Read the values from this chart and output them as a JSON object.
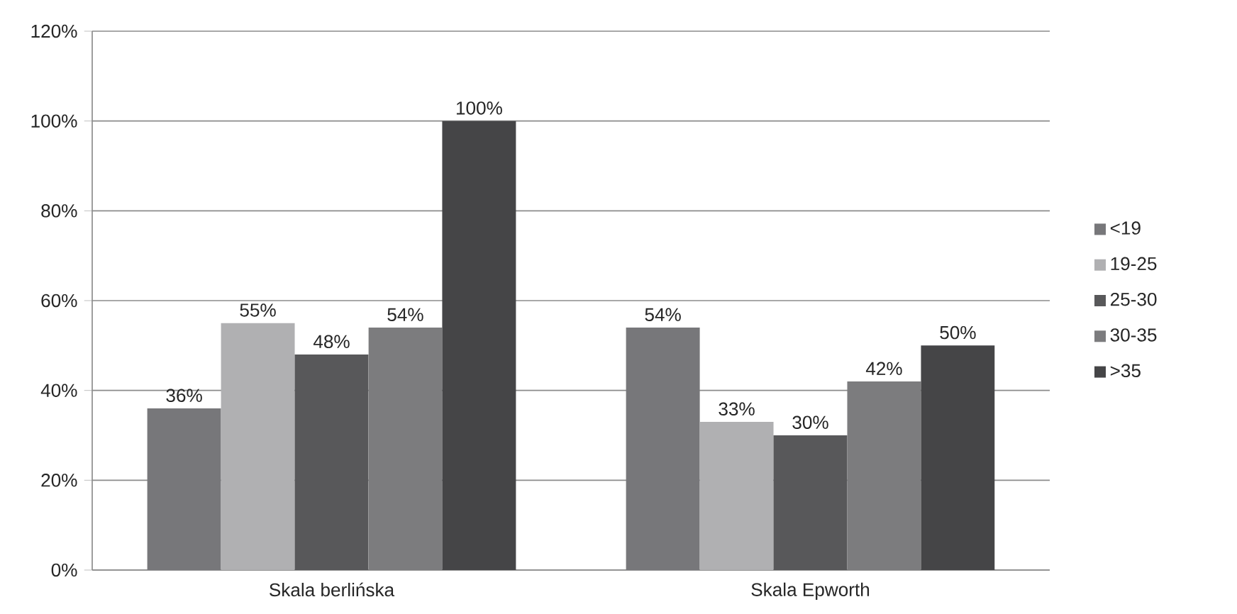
{
  "chart_data": {
    "type": "bar",
    "categories": [
      "Skala berlińska",
      "Skala Epworth"
    ],
    "series": [
      {
        "name": "<19",
        "color": "#77777a",
        "values": [
          36,
          54
        ],
        "value_labels": [
          "36%",
          "54%"
        ]
      },
      {
        "name": "19-25",
        "color": "#b0b0b2",
        "values": [
          55,
          33
        ],
        "value_labels": [
          "55%",
          "33%"
        ]
      },
      {
        "name": "25-30",
        "color": "#58585a",
        "values": [
          48,
          30
        ],
        "value_labels": [
          "48%",
          "30%"
        ]
      },
      {
        "name": "30-35",
        "color": "#7c7c7e",
        "values": [
          54,
          42
        ],
        "value_labels": [
          "54%",
          "42%"
        ]
      },
      {
        "name": ">35",
        "color": "#454547",
        "values": [
          100,
          50
        ],
        "value_labels": [
          "100%",
          "50%"
        ]
      }
    ],
    "ylim": [
      0,
      120
    ],
    "yticks": [
      {
        "value": 0,
        "label": "0%"
      },
      {
        "value": 20,
        "label": "20%"
      },
      {
        "value": 40,
        "label": "40%"
      },
      {
        "value": 60,
        "label": "60%"
      },
      {
        "value": 80,
        "label": "80%"
      },
      {
        "value": 100,
        "label": "100%"
      },
      {
        "value": 120,
        "label": "120%"
      }
    ],
    "grid": "y",
    "legend": "right"
  }
}
